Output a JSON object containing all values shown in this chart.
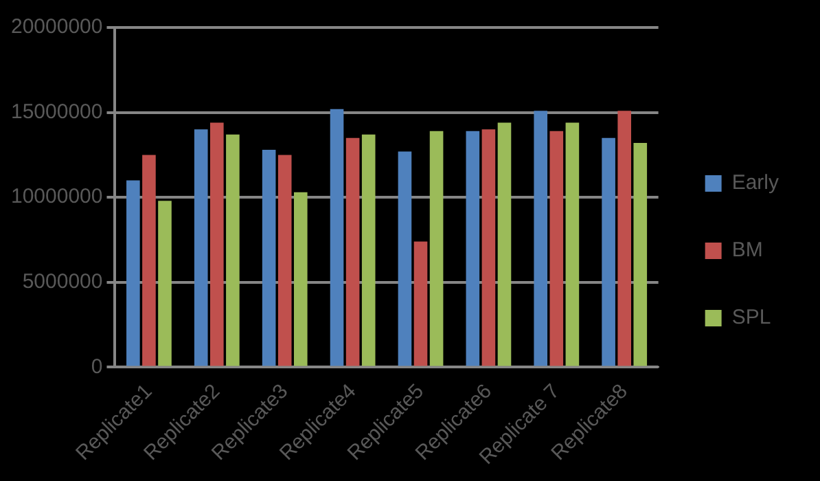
{
  "chart_data": {
    "type": "bar",
    "categories": [
      "Replicate1",
      "Replicate2",
      "Replicate3",
      "Replicate4",
      "Replicate5",
      "Replicate6",
      "Replicate 7",
      "Replicate8"
    ],
    "series": [
      {
        "name": "Early",
        "color": "#4f81bd",
        "values": [
          11000000,
          14000000,
          12800000,
          15200000,
          12700000,
          13900000,
          15100000,
          13500000
        ]
      },
      {
        "name": "BM",
        "color": "#c0504d",
        "values": [
          12500000,
          14400000,
          12500000,
          13500000,
          7400000,
          14000000,
          13900000,
          15100000
        ]
      },
      {
        "name": "SPL",
        "color": "#9bbb59",
        "values": [
          9800000,
          13700000,
          10300000,
          13700000,
          13900000,
          14400000,
          14400000,
          13200000
        ]
      }
    ],
    "ylim": [
      0,
      20000000
    ],
    "yticks": [
      0,
      5000000,
      10000000,
      15000000,
      20000000
    ],
    "grid": "y",
    "legend": "right"
  }
}
